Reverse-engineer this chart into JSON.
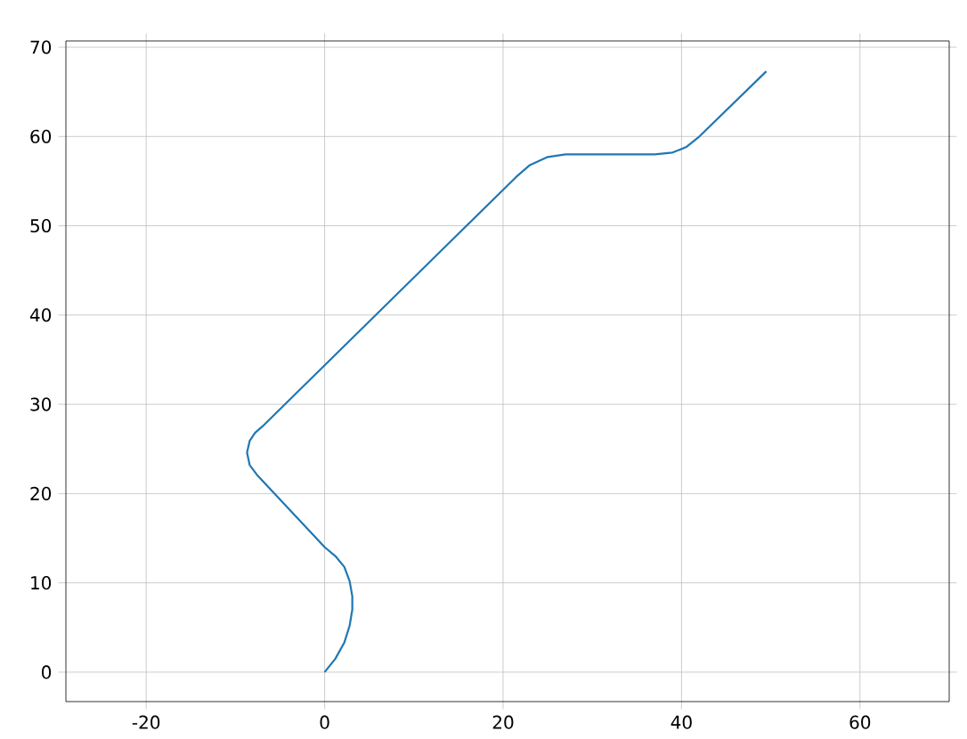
{
  "chart_data": {
    "type": "line",
    "x": [
      0,
      1.2,
      2.2,
      2.8,
      3.1,
      3.1,
      2.8,
      2.2,
      1.2,
      0,
      -7.5,
      -8.4,
      -8.7,
      -8.4,
      -7.8,
      -7,
      21.5,
      23,
      25,
      27,
      37,
      39,
      40.5,
      42,
      49.5
    ],
    "values": [
      0,
      1.5,
      3.3,
      5.2,
      7,
      8.5,
      10.2,
      11.8,
      13,
      14,
      22,
      23.2,
      24.6,
      25.9,
      26.8,
      27.5,
      55.5,
      56.8,
      57.7,
      58,
      58,
      58.2,
      58.8,
      60,
      67.3
    ],
    "color": "#1f77b4",
    "xlim": [
      -29,
      70
    ],
    "ylim": [
      -3.3,
      70.7
    ],
    "xticks": [
      -20,
      0,
      20,
      40,
      60
    ],
    "yticks": [
      0,
      10,
      20,
      30,
      40,
      50,
      60,
      70
    ],
    "grid": true
  }
}
